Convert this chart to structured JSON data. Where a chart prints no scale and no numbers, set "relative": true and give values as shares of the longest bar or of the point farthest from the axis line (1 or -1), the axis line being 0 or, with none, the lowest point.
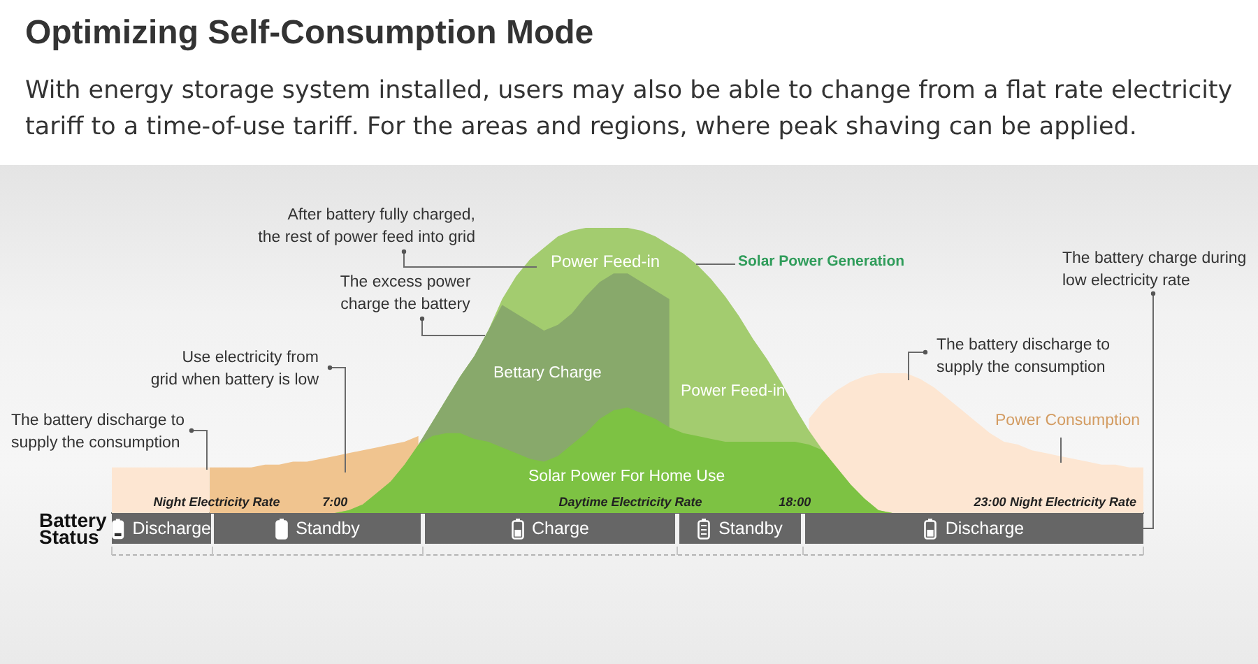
{
  "chart_data": {
    "type": "area",
    "title": "Optimizing Self-Consumption Mode",
    "subtitle": "With energy storage system installed, users may also be able to change from a flat rate electricity\ntariff to a time-of-use tariff. For the areas and regions, where peak shaving can be applied.",
    "relative": true,
    "categories": [
      null,
      null,
      null,
      null,
      null,
      null,
      null,
      null,
      null,
      null,
      null,
      null,
      null,
      null,
      null,
      null,
      "7:00",
      null,
      null,
      null,
      null,
      null,
      null,
      null,
      null,
      null,
      null,
      null,
      null,
      null,
      null,
      null,
      null,
      null,
      null,
      null,
      null,
      null,
      null,
      null,
      null,
      null,
      null,
      null,
      null,
      null,
      null,
      null,
      null,
      "18:00",
      null,
      null,
      null,
      null,
      null,
      null,
      null,
      null,
      null,
      null,
      null,
      null,
      null,
      "23:00",
      null,
      null,
      null,
      null,
      null,
      null,
      null,
      null,
      null,
      null,
      null
    ],
    "series": [
      {
        "name": "Power Consumption",
        "color": "#fde6d2",
        "values": [
          0.16,
          0.16,
          0.16,
          0.16,
          0.16,
          0.16,
          0.16,
          0.16,
          null,
          null,
          null,
          null,
          null,
          null,
          null,
          null,
          null,
          null,
          null,
          null,
          null,
          null,
          null,
          null,
          null,
          null,
          null,
          null,
          null,
          null,
          null,
          null,
          null,
          null,
          null,
          null,
          null,
          null,
          null,
          null,
          null,
          null,
          null,
          null,
          null,
          null,
          null,
          null,
          null,
          null,
          0.33,
          0.39,
          0.43,
          0.46,
          0.48,
          0.49,
          0.49,
          0.49,
          0.47,
          0.44,
          0.4,
          0.36,
          0.32,
          0.28,
          0.25,
          0.24,
          0.22,
          0.21,
          0.2,
          0.19,
          0.18,
          0.17,
          0.17,
          0.16,
          0.16
        ]
      },
      {
        "color": "#f0c48f",
        "values": [
          null,
          null,
          null,
          null,
          null,
          null,
          null,
          0.16,
          0.16,
          0.16,
          0.16,
          0.17,
          0.17,
          0.18,
          0.18,
          0.19,
          0.2,
          0.21,
          0.22,
          0.23,
          0.24,
          0.25,
          0.27,
          null,
          null,
          null,
          null,
          null,
          null,
          null,
          null,
          null,
          null,
          null,
          null,
          null,
          null,
          null,
          null,
          null,
          null,
          null,
          null,
          null,
          null,
          null,
          null,
          null,
          null,
          null,
          null,
          null,
          null,
          null,
          null,
          null,
          null,
          null,
          null,
          null,
          null,
          null,
          null,
          null,
          null,
          null,
          null,
          null,
          null,
          null,
          null,
          null,
          null,
          null,
          null
        ]
      },
      {
        "name": "Solar Power Generation",
        "color": "#a3cc6f",
        "values": [
          null,
          null,
          null,
          null,
          null,
          null,
          null,
          null,
          null,
          null,
          null,
          null,
          null,
          null,
          null,
          null,
          0,
          0.01,
          0.03,
          0.07,
          0.11,
          0.17,
          0.24,
          0.32,
          0.4,
          0.48,
          0.55,
          0.64,
          0.75,
          0.83,
          0.89,
          0.93,
          0.97,
          0.99,
          1,
          1,
          1,
          1,
          0.99,
          0.97,
          0.94,
          0.91,
          0.87,
          0.82,
          0.76,
          0.69,
          0.61,
          0.54,
          0.46,
          0.37,
          0.29,
          0.22,
          0.16,
          0.1,
          0.05,
          0.01,
          0,
          null,
          null,
          null,
          null,
          null,
          null,
          null,
          null,
          null,
          null,
          null,
          null,
          null,
          null,
          null,
          null,
          null,
          null
        ]
      },
      {
        "name": "Bettary Charge",
        "color": "#88a96b",
        "values": [
          null,
          null,
          null,
          null,
          null,
          null,
          null,
          null,
          null,
          null,
          null,
          null,
          null,
          null,
          null,
          null,
          null,
          null,
          null,
          null,
          null,
          null,
          0.24,
          0.32,
          0.4,
          0.48,
          0.55,
          0.64,
          0.73,
          0.7,
          0.67,
          0.64,
          0.66,
          0.7,
          0.76,
          0.81,
          0.84,
          0.84,
          0.81,
          0.78,
          0.75,
          null,
          null,
          null,
          null,
          null,
          null,
          null,
          null,
          null,
          null,
          null,
          null,
          null,
          null,
          null,
          null,
          null,
          null,
          null,
          null,
          null,
          null,
          null,
          null,
          null,
          null,
          null,
          null,
          null,
          null,
          null,
          null,
          null,
          null
        ]
      },
      {
        "name": "Solar Power For Home Use",
        "color": "#7dc243",
        "values": [
          null,
          null,
          null,
          null,
          null,
          null,
          null,
          null,
          null,
          null,
          null,
          null,
          null,
          null,
          null,
          null,
          0,
          0.01,
          0.03,
          0.07,
          0.11,
          0.17,
          0.24,
          0.27,
          0.28,
          0.28,
          0.26,
          0.25,
          0.23,
          0.21,
          0.19,
          0.18,
          0.2,
          0.24,
          0.28,
          0.33,
          0.36,
          0.37,
          0.35,
          0.33,
          0.3,
          0.28,
          0.27,
          0.26,
          0.25,
          0.25,
          0.25,
          0.25,
          0.25,
          0.25,
          0.24,
          0.22,
          0.16,
          0.1,
          0.05,
          0.01,
          0,
          null,
          null,
          null,
          null,
          null,
          null,
          null,
          null,
          null,
          null,
          null,
          null,
          null,
          null,
          null,
          null,
          null,
          null
        ]
      }
    ],
    "annotations": [
      "After battery fully charged,\nthe rest of power feed into grid",
      "The excess power\ncharge the battery",
      "Use electricity from\ngrid when battery is low",
      "The battery discharge to\nsupply the consumption",
      "The battery discharge to\nsupply the consumption",
      "The battery charge during\nlow electricity rate",
      "Power Feed-in",
      "Power Feed-in",
      "Night Electricity Rate",
      "Daytime Electricity Rate",
      "Night Electricity Rate",
      "Battery\nStatus",
      "Discharge",
      "Standby",
      "Charge",
      "Standby",
      "Discharge"
    ]
  }
}
